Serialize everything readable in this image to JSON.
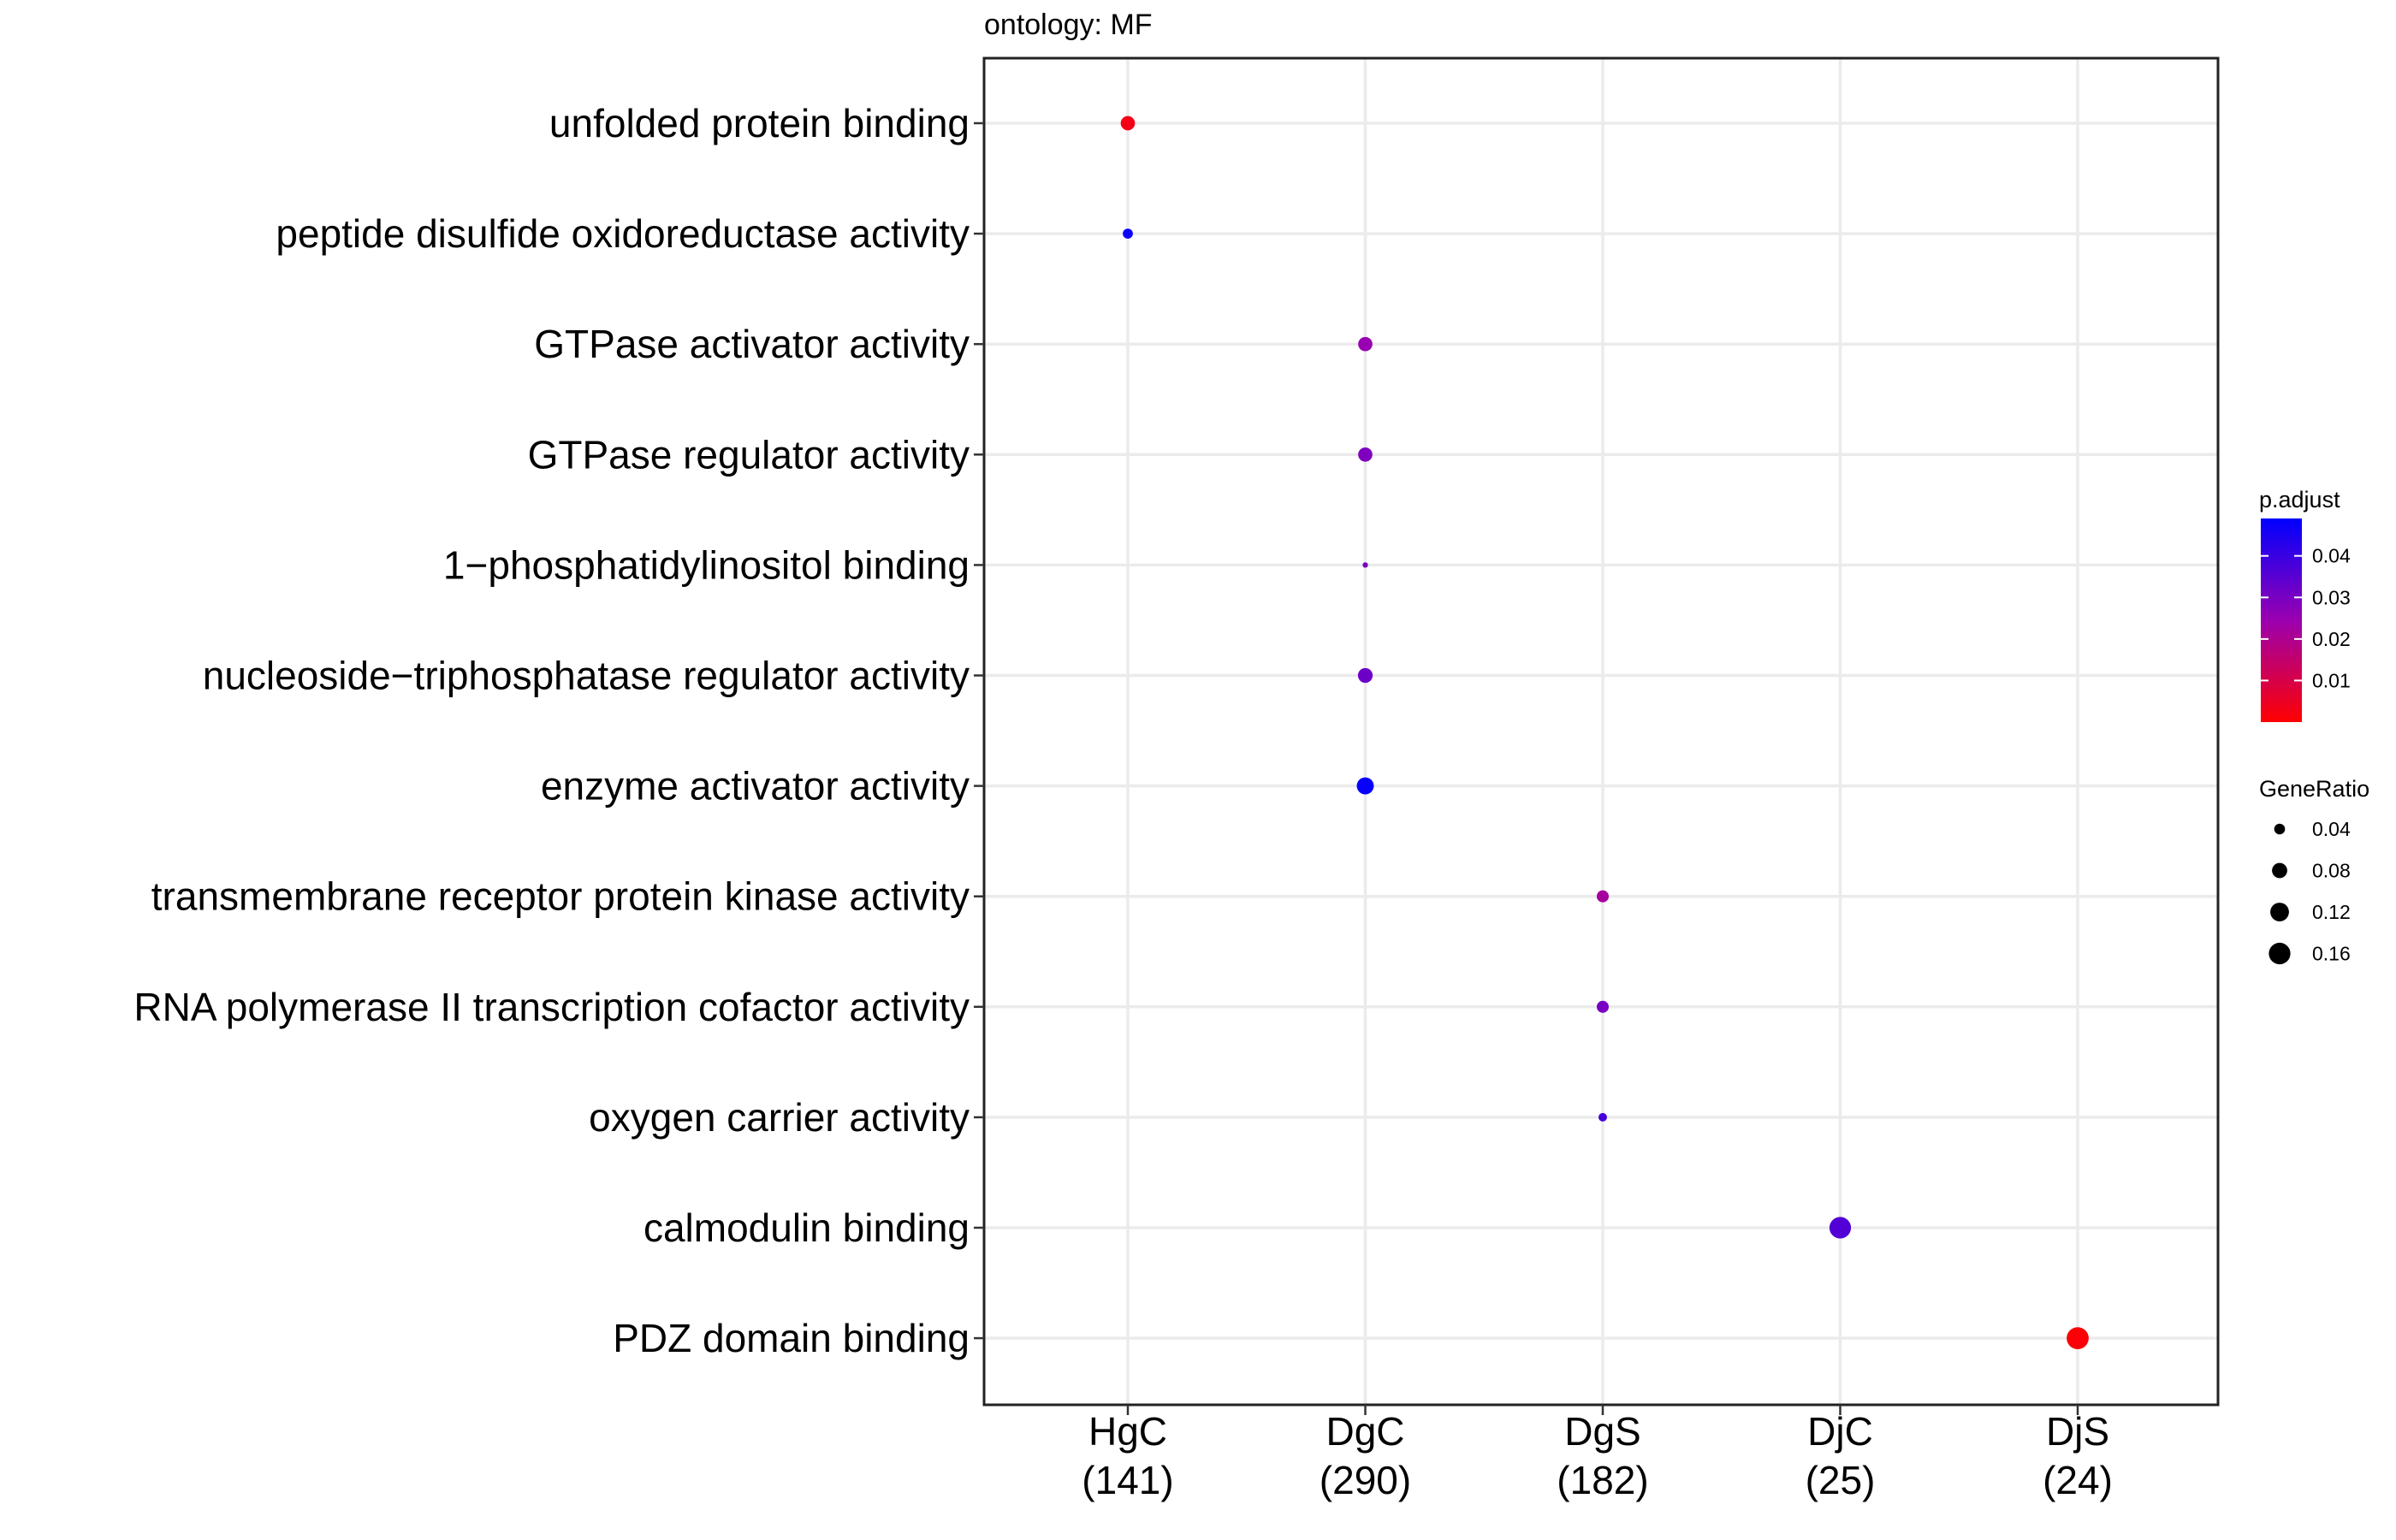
{
  "chart_data": {
    "type": "scatter",
    "subtitle": "ontology: MF",
    "groups": [
      {
        "name": "HgC",
        "count": "(141)"
      },
      {
        "name": "DgC",
        "count": "(290)"
      },
      {
        "name": "DgS",
        "count": "(182)"
      },
      {
        "name": "DjC",
        "count": "(25)"
      },
      {
        "name": "DjS",
        "count": "(24)"
      }
    ],
    "terms": [
      "unfolded protein binding",
      "peptide disulfide oxidoreductase activity",
      "GTPase activator activity",
      "GTPase regulator activity",
      "1−phosphatidylinositol binding",
      "nucleoside−triphosphatase regulator activity",
      "enzyme activator activity",
      "transmembrane receptor protein kinase activity",
      "RNA polymerase II transcription cofactor activity",
      "oxygen carrier activity",
      "calmodulin binding",
      "PDZ domain binding"
    ],
    "points": [
      {
        "term": "unfolded protein binding",
        "group": "HgC",
        "gene_ratio": 0.07,
        "p_adjust": 0.003
      },
      {
        "term": "peptide disulfide oxidoreductase activity",
        "group": "HgC",
        "gene_ratio": 0.035,
        "p_adjust": 0.047
      },
      {
        "term": "GTPase activator activity",
        "group": "DgC",
        "gene_ratio": 0.07,
        "p_adjust": 0.025
      },
      {
        "term": "GTPase regulator activity",
        "group": "DgC",
        "gene_ratio": 0.07,
        "p_adjust": 0.029
      },
      {
        "term": "1−phosphatidylinositol binding",
        "group": "DgC",
        "gene_ratio": 0.01,
        "p_adjust": 0.03
      },
      {
        "term": "nucleoside−triphosphatase regulator activity",
        "group": "DgC",
        "gene_ratio": 0.075,
        "p_adjust": 0.032
      },
      {
        "term": "enzyme activator activity",
        "group": "DgC",
        "gene_ratio": 0.1,
        "p_adjust": 0.048
      },
      {
        "term": "transmembrane receptor protein kinase activity",
        "group": "DgS",
        "gene_ratio": 0.05,
        "p_adjust": 0.022
      },
      {
        "term": "RNA polymerase II transcription cofactor activity",
        "group": "DgS",
        "gene_ratio": 0.05,
        "p_adjust": 0.03
      },
      {
        "term": "oxygen carrier activity",
        "group": "DgS",
        "gene_ratio": 0.025,
        "p_adjust": 0.038
      },
      {
        "term": "calmodulin binding",
        "group": "DjC",
        "gene_ratio": 0.16,
        "p_adjust": 0.036
      },
      {
        "term": "PDZ domain binding",
        "group": "DjS",
        "gene_ratio": 0.167,
        "p_adjust": 0.001
      }
    ],
    "color_legend": {
      "title": "p.adjust",
      "ticks": [
        "0.04",
        "0.03",
        "0.02",
        "0.01"
      ],
      "tick_values": [
        0.04,
        0.03,
        0.02,
        0.01
      ],
      "range": [
        0.0,
        0.049
      ],
      "low_color": "#ff0000",
      "high_color": "#0000ff"
    },
    "size_legend": {
      "title": "GeneRatio",
      "ticks": [
        "0.04",
        "0.08",
        "0.12",
        "0.16"
      ],
      "tick_values": [
        0.04,
        0.08,
        0.12,
        0.16
      ]
    },
    "grid": true,
    "legend_position": "right"
  }
}
